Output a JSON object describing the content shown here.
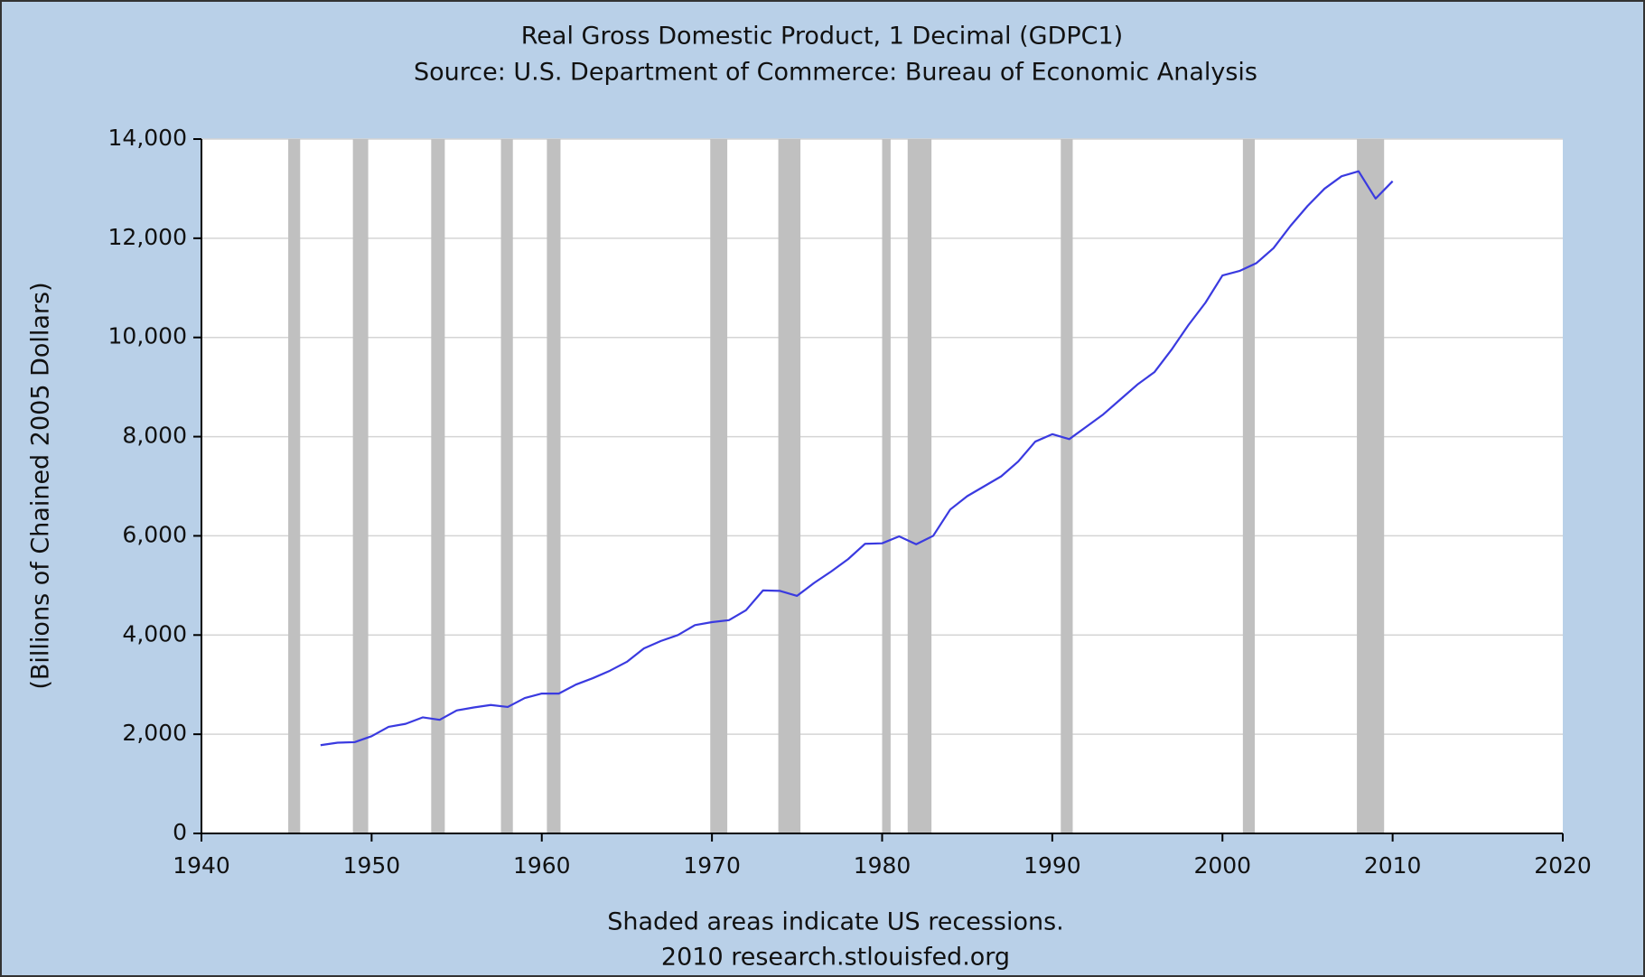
{
  "chart_data": {
    "type": "line",
    "title": "Real Gross Domestic Product, 1 Decimal (GDPC1)",
    "subtitle": "Source: U.S. Department of Commerce: Bureau of Economic Analysis",
    "ylabel": "(Billions of Chained 2005 Dollars)",
    "notes": [
      "Shaded areas indicate US recessions.",
      "2010 research.stlouisfed.org"
    ],
    "x": [
      1947,
      1948,
      1949,
      1950,
      1951,
      1952,
      1953,
      1954,
      1955,
      1956,
      1957,
      1958,
      1959,
      1960,
      1961,
      1962,
      1963,
      1964,
      1965,
      1966,
      1967,
      1968,
      1969,
      1970,
      1971,
      1972,
      1973,
      1974,
      1975,
      1976,
      1977,
      1978,
      1979,
      1980,
      1981,
      1982,
      1983,
      1984,
      1985,
      1986,
      1987,
      1988,
      1989,
      1990,
      1991,
      1992,
      1993,
      1994,
      1995,
      1996,
      1997,
      1998,
      1999,
      2000,
      2001,
      2002,
      2003,
      2004,
      2005,
      2006,
      2007,
      2008,
      2009,
      2010
    ],
    "values": [
      1780,
      1830,
      1840,
      1960,
      2150,
      2210,
      2340,
      2290,
      2480,
      2540,
      2590,
      2550,
      2730,
      2820,
      2820,
      3000,
      3130,
      3280,
      3460,
      3730,
      3880,
      4000,
      4200,
      4260,
      4300,
      4500,
      4900,
      4890,
      4790,
      5050,
      5280,
      5530,
      5840,
      5850,
      5990,
      5830,
      6000,
      6530,
      6800,
      7000,
      7200,
      7500,
      7900,
      8050,
      7950,
      8200,
      8450,
      8750,
      9050,
      9300,
      9750,
      10250,
      10700,
      11250,
      11340,
      11500,
      11800,
      12250,
      12650,
      13000,
      13250,
      13350,
      12800,
      13150
    ],
    "color": "#3a3ae0",
    "recessions": [
      [
        1945.1,
        1945.8
      ],
      [
        1948.9,
        1949.8
      ],
      [
        1953.5,
        1954.3
      ],
      [
        1957.6,
        1958.3
      ],
      [
        1960.3,
        1961.1
      ],
      [
        1969.9,
        1970.9
      ],
      [
        1973.9,
        1975.2
      ],
      [
        1980.0,
        1980.5
      ],
      [
        1981.5,
        1982.9
      ],
      [
        1990.5,
        1991.2
      ],
      [
        2001.2,
        2001.9
      ],
      [
        2007.9,
        2009.5
      ]
    ],
    "recession_color": "#c0c0c0",
    "xlim": [
      1940,
      2020
    ],
    "xticks": [
      1940,
      1950,
      1960,
      1970,
      1980,
      1990,
      2000,
      2010,
      2020
    ],
    "ylim": [
      0,
      14000
    ],
    "yticks": [
      0,
      {
        "value": 2000,
        "label": "2,000"
      },
      {
        "value": 4000,
        "label": "4,000"
      },
      {
        "value": 6000,
        "label": "6,000"
      },
      {
        "value": 8000,
        "label": "8,000"
      },
      {
        "value": 10000,
        "label": "10,000"
      },
      {
        "value": 12000,
        "label": "12,000"
      },
      {
        "value": 14000,
        "label": "14,000"
      }
    ],
    "grid": true
  }
}
